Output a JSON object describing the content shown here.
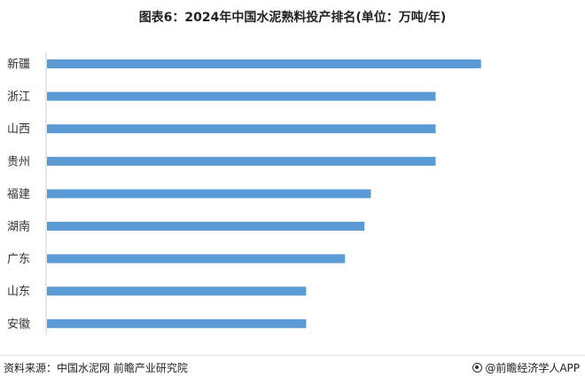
{
  "chart_data": {
    "type": "bar",
    "orientation": "horizontal",
    "title": "图表6：2024年中国水泥熟料投产排名(单位：万吨/年)",
    "categories": [
      "新疆",
      "浙江",
      "山西",
      "贵州",
      "福建",
      "湖南",
      "广东",
      "山东",
      "安徽"
    ],
    "values": [
      1005,
      900,
      900,
      900,
      750,
      735,
      690,
      600,
      600
    ],
    "xlim": [
      0,
      1020
    ],
    "grid": false,
    "legend": "none",
    "bar_color": "#5B9BD5"
  },
  "footer": {
    "source": "资料来源：中国水泥网 前瞻产业研究院",
    "brand": "@前瞻经济学人APP"
  }
}
